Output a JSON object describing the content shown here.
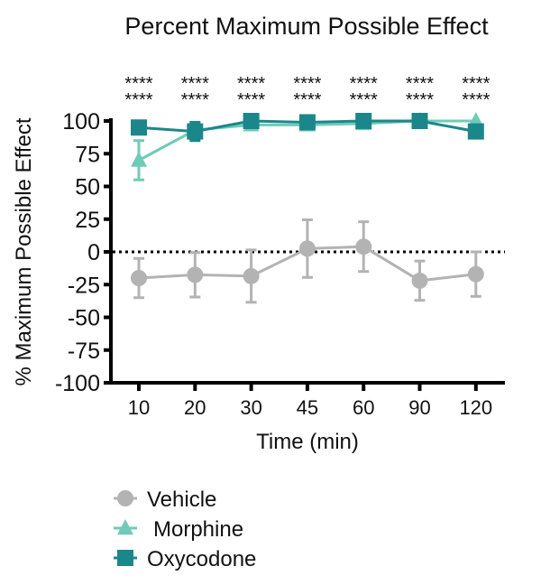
{
  "chart_data": {
    "type": "line",
    "title": "Percent Maximum Possible Effect",
    "xlabel": "Time (min)",
    "ylabel": "% Maximum Possible Effect",
    "categories": [
      "10",
      "20",
      "30",
      "45",
      "60",
      "90",
      "120"
    ],
    "ylim": [
      -100,
      100
    ],
    "yticks": [
      100,
      75,
      50,
      25,
      0,
      -25,
      -50,
      -75,
      -100
    ],
    "reference_line": {
      "y": 0,
      "style": "dotted"
    },
    "significance": [
      [
        "****",
        "****"
      ],
      [
        "****",
        "****"
      ],
      [
        "****",
        "****"
      ],
      [
        "****",
        "****"
      ],
      [
        "****",
        "****"
      ],
      [
        "****",
        "****"
      ],
      [
        "****",
        "****"
      ]
    ],
    "legend_placement": "bottom",
    "series": [
      {
        "name": "Vehicle",
        "marker": "circle",
        "color": "#b3b3b3",
        "values": [
          -20,
          -17.5,
          -18.5,
          2.5,
          4,
          -22,
          -17
        ],
        "sem": [
          15,
          17,
          20,
          22,
          19,
          15,
          17
        ]
      },
      {
        "name": "Morphine",
        "marker": "triangle",
        "color": "#6fcbb7",
        "values": [
          70,
          93,
          97,
          97,
          98,
          100,
          100
        ],
        "sem": [
          15,
          5,
          3,
          3,
          3,
          0,
          0
        ]
      },
      {
        "name": "Oxycodone",
        "marker": "square",
        "color": "#1b878b",
        "values": [
          95,
          92,
          100,
          99,
          100,
          100,
          92
        ],
        "sem": [
          0,
          7,
          0,
          0,
          0,
          0,
          3
        ]
      }
    ]
  }
}
